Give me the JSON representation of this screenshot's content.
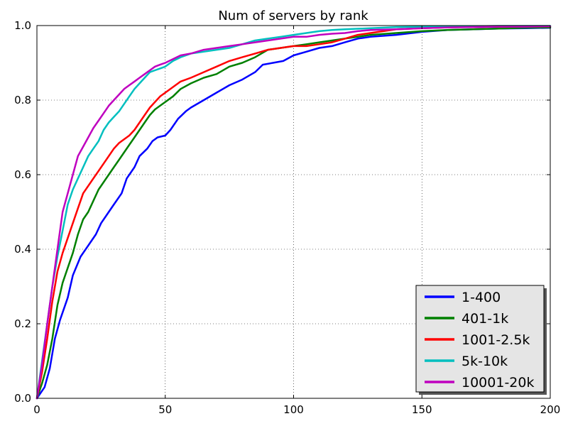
{
  "chart_data": {
    "type": "line",
    "title": "Num of servers by rank",
    "xlabel": "",
    "ylabel": "",
    "xlim": [
      0,
      200
    ],
    "ylim": [
      0.0,
      1.0
    ],
    "xticks": [
      0,
      50,
      100,
      150,
      200
    ],
    "yticks": [
      0.0,
      0.2,
      0.4,
      0.6,
      0.8,
      1.0
    ],
    "xtick_labels": [
      "0",
      "50",
      "100",
      "150",
      "200"
    ],
    "ytick_labels": [
      "0.0",
      "0.2",
      "0.4",
      "0.6",
      "0.8",
      "1.0"
    ],
    "grid": true,
    "legend_position": "bottom-right",
    "series": [
      {
        "name": "1-400",
        "color": "#0000ff",
        "points": [
          [
            0,
            0.0
          ],
          [
            3,
            0.03
          ],
          [
            5,
            0.08
          ],
          [
            7,
            0.16
          ],
          [
            9,
            0.21
          ],
          [
            12,
            0.27
          ],
          [
            14,
            0.33
          ],
          [
            17,
            0.38
          ],
          [
            20,
            0.41
          ],
          [
            23,
            0.44
          ],
          [
            25,
            0.47
          ],
          [
            28,
            0.5
          ],
          [
            30,
            0.52
          ],
          [
            33,
            0.55
          ],
          [
            35,
            0.59
          ],
          [
            38,
            0.62
          ],
          [
            40,
            0.65
          ],
          [
            43,
            0.67
          ],
          [
            45,
            0.69
          ],
          [
            47,
            0.7
          ],
          [
            50,
            0.705
          ],
          [
            52,
            0.72
          ],
          [
            55,
            0.75
          ],
          [
            58,
            0.77
          ],
          [
            60,
            0.78
          ],
          [
            65,
            0.8
          ],
          [
            70,
            0.82
          ],
          [
            75,
            0.84
          ],
          [
            80,
            0.855
          ],
          [
            85,
            0.875
          ],
          [
            88,
            0.895
          ],
          [
            92,
            0.9
          ],
          [
            96,
            0.905
          ],
          [
            100,
            0.92
          ],
          [
            105,
            0.93
          ],
          [
            110,
            0.94
          ],
          [
            115,
            0.945
          ],
          [
            120,
            0.955
          ],
          [
            125,
            0.965
          ],
          [
            130,
            0.97
          ],
          [
            140,
            0.975
          ],
          [
            150,
            0.983
          ],
          [
            160,
            0.988
          ],
          [
            170,
            0.99
          ],
          [
            180,
            0.992
          ],
          [
            190,
            0.993
          ],
          [
            200,
            0.994
          ]
        ]
      },
      {
        "name": "401-1k",
        "color": "#008000",
        "points": [
          [
            0,
            0.0
          ],
          [
            2,
            0.04
          ],
          [
            4,
            0.09
          ],
          [
            6,
            0.16
          ],
          [
            8,
            0.25
          ],
          [
            10,
            0.31
          ],
          [
            12,
            0.35
          ],
          [
            14,
            0.39
          ],
          [
            16,
            0.44
          ],
          [
            18,
            0.48
          ],
          [
            20,
            0.5
          ],
          [
            22,
            0.53
          ],
          [
            24,
            0.56
          ],
          [
            26,
            0.58
          ],
          [
            28,
            0.6
          ],
          [
            30,
            0.62
          ],
          [
            32,
            0.64
          ],
          [
            34,
            0.66
          ],
          [
            36,
            0.68
          ],
          [
            38,
            0.7
          ],
          [
            40,
            0.72
          ],
          [
            42,
            0.74
          ],
          [
            44,
            0.76
          ],
          [
            46,
            0.775
          ],
          [
            48,
            0.785
          ],
          [
            50,
            0.795
          ],
          [
            53,
            0.81
          ],
          [
            56,
            0.83
          ],
          [
            60,
            0.845
          ],
          [
            65,
            0.86
          ],
          [
            70,
            0.87
          ],
          [
            75,
            0.89
          ],
          [
            80,
            0.9
          ],
          [
            85,
            0.915
          ],
          [
            90,
            0.935
          ],
          [
            95,
            0.94
          ],
          [
            100,
            0.945
          ],
          [
            105,
            0.95
          ],
          [
            110,
            0.955
          ],
          [
            115,
            0.96
          ],
          [
            120,
            0.965
          ],
          [
            125,
            0.97
          ],
          [
            130,
            0.975
          ],
          [
            140,
            0.98
          ],
          [
            150,
            0.985
          ],
          [
            160,
            0.988
          ],
          [
            170,
            0.99
          ],
          [
            180,
            0.992
          ],
          [
            190,
            0.994
          ],
          [
            200,
            0.995
          ]
        ]
      },
      {
        "name": "1001-2.5k",
        "color": "#ff0000",
        "points": [
          [
            0,
            0.0
          ],
          [
            2,
            0.07
          ],
          [
            4,
            0.16
          ],
          [
            6,
            0.26
          ],
          [
            8,
            0.34
          ],
          [
            10,
            0.39
          ],
          [
            12,
            0.43
          ],
          [
            14,
            0.47
          ],
          [
            16,
            0.51
          ],
          [
            18,
            0.55
          ],
          [
            20,
            0.57
          ],
          [
            22,
            0.59
          ],
          [
            24,
            0.61
          ],
          [
            26,
            0.63
          ],
          [
            28,
            0.65
          ],
          [
            30,
            0.67
          ],
          [
            32,
            0.685
          ],
          [
            34,
            0.695
          ],
          [
            36,
            0.705
          ],
          [
            38,
            0.72
          ],
          [
            40,
            0.74
          ],
          [
            42,
            0.76
          ],
          [
            44,
            0.78
          ],
          [
            46,
            0.795
          ],
          [
            48,
            0.81
          ],
          [
            50,
            0.82
          ],
          [
            53,
            0.835
          ],
          [
            56,
            0.85
          ],
          [
            60,
            0.86
          ],
          [
            65,
            0.875
          ],
          [
            70,
            0.89
          ],
          [
            75,
            0.905
          ],
          [
            80,
            0.915
          ],
          [
            85,
            0.925
          ],
          [
            90,
            0.935
          ],
          [
            95,
            0.94
          ],
          [
            100,
            0.945
          ],
          [
            105,
            0.945
          ],
          [
            110,
            0.95
          ],
          [
            115,
            0.955
          ],
          [
            120,
            0.965
          ],
          [
            125,
            0.975
          ],
          [
            130,
            0.98
          ],
          [
            135,
            0.985
          ],
          [
            140,
            0.99
          ],
          [
            150,
            0.993
          ],
          [
            160,
            0.995
          ],
          [
            170,
            0.996
          ],
          [
            180,
            0.997
          ],
          [
            190,
            0.998
          ],
          [
            200,
            0.998
          ]
        ]
      },
      {
        "name": "5k-10k",
        "color": "#00bfbf",
        "points": [
          [
            0,
            0.0
          ],
          [
            2,
            0.1
          ],
          [
            4,
            0.2
          ],
          [
            6,
            0.3
          ],
          [
            8,
            0.38
          ],
          [
            10,
            0.45
          ],
          [
            12,
            0.52
          ],
          [
            14,
            0.56
          ],
          [
            16,
            0.59
          ],
          [
            18,
            0.62
          ],
          [
            20,
            0.65
          ],
          [
            22,
            0.67
          ],
          [
            24,
            0.69
          ],
          [
            26,
            0.72
          ],
          [
            28,
            0.74
          ],
          [
            30,
            0.755
          ],
          [
            32,
            0.77
          ],
          [
            34,
            0.79
          ],
          [
            36,
            0.81
          ],
          [
            38,
            0.83
          ],
          [
            40,
            0.845
          ],
          [
            42,
            0.86
          ],
          [
            44,
            0.875
          ],
          [
            46,
            0.88
          ],
          [
            48,
            0.885
          ],
          [
            50,
            0.89
          ],
          [
            53,
            0.905
          ],
          [
            56,
            0.915
          ],
          [
            60,
            0.925
          ],
          [
            65,
            0.93
          ],
          [
            70,
            0.935
          ],
          [
            75,
            0.94
          ],
          [
            80,
            0.95
          ],
          [
            85,
            0.96
          ],
          [
            90,
            0.965
          ],
          [
            95,
            0.97
          ],
          [
            100,
            0.975
          ],
          [
            105,
            0.98
          ],
          [
            110,
            0.985
          ],
          [
            115,
            0.988
          ],
          [
            120,
            0.99
          ],
          [
            130,
            0.993
          ],
          [
            140,
            0.996
          ],
          [
            150,
            0.997
          ],
          [
            160,
            0.998
          ],
          [
            170,
            0.998
          ],
          [
            180,
            0.999
          ],
          [
            190,
            0.999
          ],
          [
            200,
            0.999
          ]
        ]
      },
      {
        "name": "10001-20k",
        "color": "#bf00bf",
        "points": [
          [
            0,
            0.0
          ],
          [
            2,
            0.09
          ],
          [
            4,
            0.2
          ],
          [
            6,
            0.3
          ],
          [
            8,
            0.4
          ],
          [
            10,
            0.5
          ],
          [
            12,
            0.55
          ],
          [
            14,
            0.6
          ],
          [
            16,
            0.65
          ],
          [
            18,
            0.675
          ],
          [
            20,
            0.7
          ],
          [
            22,
            0.725
          ],
          [
            24,
            0.745
          ],
          [
            26,
            0.765
          ],
          [
            28,
            0.785
          ],
          [
            30,
            0.8
          ],
          [
            32,
            0.815
          ],
          [
            34,
            0.83
          ],
          [
            36,
            0.84
          ],
          [
            38,
            0.85
          ],
          [
            40,
            0.86
          ],
          [
            42,
            0.87
          ],
          [
            44,
            0.88
          ],
          [
            46,
            0.89
          ],
          [
            48,
            0.895
          ],
          [
            50,
            0.9
          ],
          [
            53,
            0.91
          ],
          [
            56,
            0.92
          ],
          [
            60,
            0.925
          ],
          [
            65,
            0.935
          ],
          [
            70,
            0.94
          ],
          [
            75,
            0.945
          ],
          [
            80,
            0.95
          ],
          [
            85,
            0.955
          ],
          [
            90,
            0.96
          ],
          [
            95,
            0.965
          ],
          [
            100,
            0.97
          ],
          [
            105,
            0.97
          ],
          [
            110,
            0.975
          ],
          [
            115,
            0.978
          ],
          [
            120,
            0.98
          ],
          [
            125,
            0.985
          ],
          [
            130,
            0.988
          ],
          [
            140,
            0.99
          ],
          [
            150,
            0.993
          ],
          [
            160,
            0.995
          ],
          [
            170,
            0.996
          ],
          [
            180,
            0.997
          ],
          [
            190,
            0.997
          ],
          [
            200,
            0.998
          ]
        ]
      }
    ]
  }
}
